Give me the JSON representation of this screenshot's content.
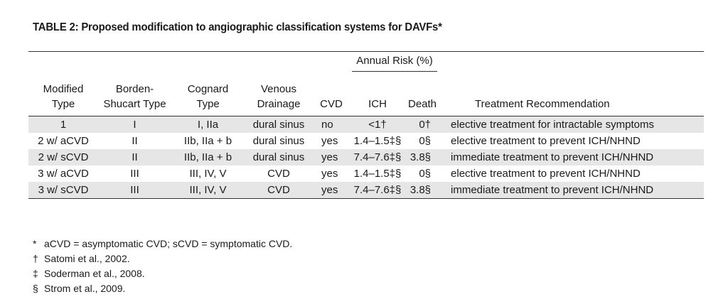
{
  "title": "TABLE 2: Proposed modification to angiographic classification systems for DAVFs*",
  "table": {
    "group_header": "Annual Risk (%)",
    "headers": {
      "modified_type": "Modified Type",
      "borden_shucart": "Borden-Shucart Type",
      "cognard": "Cognard Type",
      "venous": "Venous Drainage",
      "cvd": "CVD",
      "ich": "ICH",
      "death": "Death",
      "treatment": "Treatment  Recommendation"
    },
    "rows": [
      {
        "modified": "1",
        "borden": "I",
        "cognard": "I, IIa",
        "venous": "dural sinus",
        "cvd": "no",
        "ich": "<1†",
        "death": "0†",
        "treatment": "elective treatment for intractable symptoms"
      },
      {
        "modified": "2 w/ aCVD",
        "borden": "II",
        "cognard": "IIb, IIa + b",
        "venous": "dural sinus",
        "cvd": "yes",
        "ich": "1.4–1.5‡§",
        "death": "0§",
        "treatment": "elective treatment to prevent ICH/NHND"
      },
      {
        "modified": "2 w/ sCVD",
        "borden": "II",
        "cognard": "IIb, IIa + b",
        "venous": "dural sinus",
        "cvd": "yes",
        "ich": "7.4–7.6‡§",
        "death": "3.8§",
        "treatment": "immediate treatment to prevent ICH/NHND"
      },
      {
        "modified": "3 w/ aCVD",
        "borden": "III",
        "cognard": "III, IV, V",
        "venous": "CVD",
        "cvd": "yes",
        "ich": "1.4–1.5‡§",
        "death": "0§",
        "treatment": "elective treatment to prevent ICH/NHND"
      },
      {
        "modified": "3 w/ sCVD",
        "borden": "III",
        "cognard": "III, IV, V",
        "venous": "CVD",
        "cvd": "yes",
        "ich": "7.4–7.6‡§",
        "death": "3.8§",
        "treatment": "immediate treatment to prevent ICH/NHND"
      }
    ]
  },
  "footnotes": [
    {
      "symbol": "*",
      "text": "aCVD = asymptomatic CVD; sCVD = symptomatic CVD."
    },
    {
      "symbol": "†",
      "text": "Satomi et al., 2002."
    },
    {
      "symbol": "‡",
      "text": "Soderman et al., 2008."
    },
    {
      "symbol": "§",
      "text": "Strom et al., 2009."
    }
  ],
  "colors": {
    "shaded_row": "#e6e6e6",
    "rule": "#333333"
  }
}
